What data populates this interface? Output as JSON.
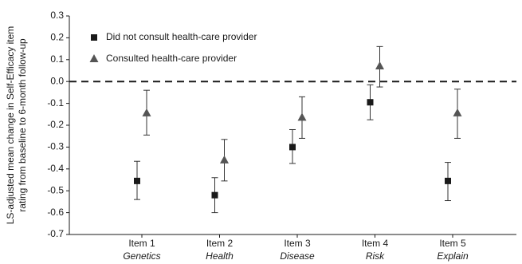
{
  "chart_data": {
    "type": "scatter",
    "ylabel_lines": [
      "LS-adjusted mean change in Self-Efficacy item",
      "rating from baseline to 6-month follow-up"
    ],
    "ylim": [
      -0.7,
      0.3
    ],
    "yticks": [
      "0.3",
      "0.2",
      "0.1",
      "0.0",
      "-0.1",
      "-0.2",
      "-0.3",
      "-0.4",
      "-0.5",
      "-0.6",
      "-0.7"
    ],
    "ytick_values": [
      0.3,
      0.2,
      0.1,
      0.0,
      -0.1,
      -0.2,
      -0.3,
      -0.4,
      -0.5,
      -0.6,
      -0.7
    ],
    "categories": [
      "Item 1",
      "Item 2",
      "Item 3",
      "Item 4",
      "Item 5"
    ],
    "subcategories": [
      "Genetics",
      "Health",
      "Disease",
      "Risk",
      "Explain"
    ],
    "reference_line": 0.0,
    "grid": false,
    "legend_position": "top-left",
    "series": [
      {
        "name": "Did not consult health-care provider",
        "marker": "square",
        "values": [
          -0.455,
          -0.52,
          -0.3,
          -0.095,
          -0.455
        ],
        "err_low": [
          -0.54,
          -0.6,
          -0.375,
          -0.175,
          -0.545
        ],
        "err_high": [
          -0.365,
          -0.44,
          -0.22,
          -0.015,
          -0.37
        ]
      },
      {
        "name": "Consulted health-care provider",
        "marker": "triangle",
        "values": [
          -0.145,
          -0.36,
          -0.165,
          0.07,
          -0.145
        ],
        "err_low": [
          -0.245,
          -0.455,
          -0.26,
          -0.025,
          -0.26
        ],
        "err_high": [
          -0.04,
          -0.265,
          -0.07,
          0.16,
          -0.035
        ]
      }
    ]
  }
}
